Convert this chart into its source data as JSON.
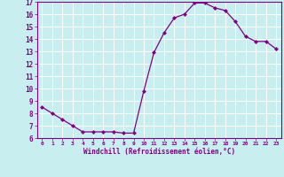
{
  "x": [
    0,
    1,
    2,
    3,
    4,
    5,
    6,
    7,
    8,
    9,
    10,
    11,
    12,
    13,
    14,
    15,
    16,
    17,
    18,
    19,
    20,
    21,
    22,
    23
  ],
  "y": [
    8.5,
    8.0,
    7.5,
    7.0,
    6.5,
    6.5,
    6.5,
    6.5,
    6.4,
    6.4,
    9.8,
    12.9,
    14.5,
    15.7,
    16.0,
    16.9,
    16.9,
    16.5,
    16.3,
    15.4,
    14.2,
    13.8,
    13.8,
    13.2
  ],
  "ylim": [
    6,
    17
  ],
  "xlim": [
    -0.5,
    23.5
  ],
  "yticks": [
    6,
    7,
    8,
    9,
    10,
    11,
    12,
    13,
    14,
    15,
    16,
    17
  ],
  "xticks": [
    0,
    1,
    2,
    3,
    4,
    5,
    6,
    7,
    8,
    9,
    10,
    11,
    12,
    13,
    14,
    15,
    16,
    17,
    18,
    19,
    20,
    21,
    22,
    23
  ],
  "xlabel": "Windchill (Refroidissement éolien,°C)",
  "line_color": "#800080",
  "marker_color": "#800080",
  "bg_color": "#c8eef0",
  "grid_color": "#b0dde0",
  "tick_label_color": "#800080",
  "axis_label_color": "#800080",
  "spine_color": "#800080"
}
